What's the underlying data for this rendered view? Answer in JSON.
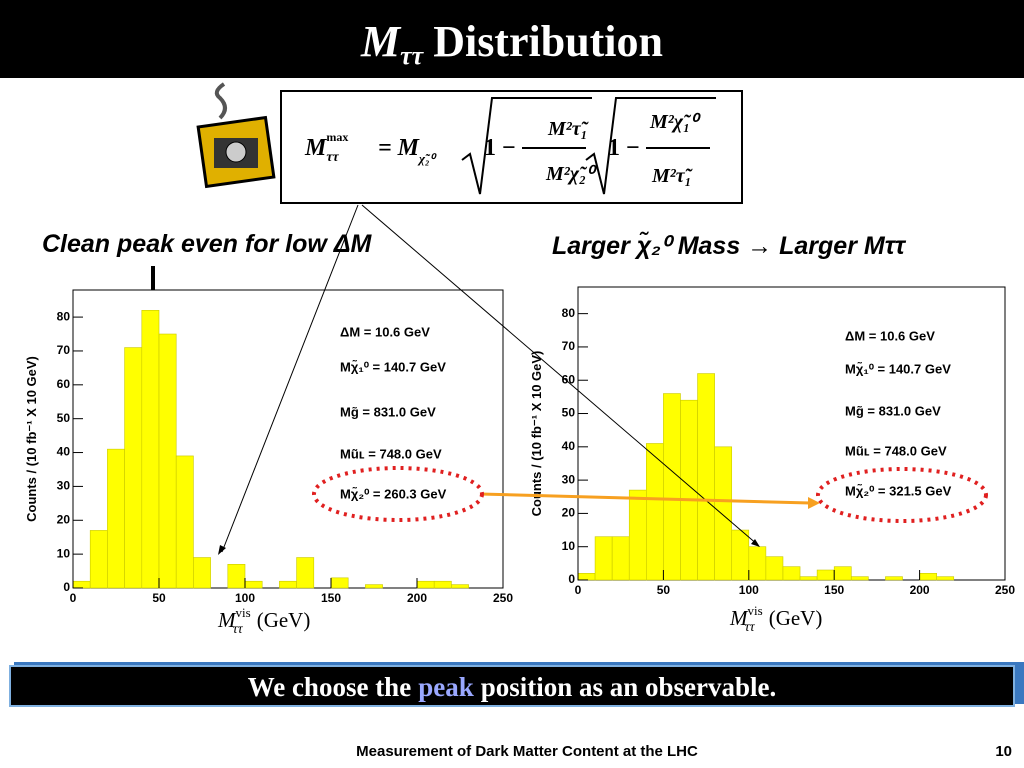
{
  "slide": {
    "title_symbol": "M",
    "title_sub": "ττ",
    "title_text": "Distribution",
    "formula": {
      "lhs": "M",
      "lhs_sup": "max",
      "lhs_sub": "ττ",
      "eq": "= M",
      "eq_sub": "χ̃₂⁰",
      "one": "1 −",
      "f1_num": "M²τ̃₁",
      "f1_den": "M²χ̃₂⁰",
      "f2_num": "M²χ̃₁⁰",
      "f2_den": "M²τ̃₁"
    },
    "caption_left": "Clean peak even for low ΔM",
    "caption_right": "Larger χ̃₂⁰ Mass → Larger Mττ",
    "banner_pre": "We choose the",
    "banner_hl": "peak",
    "banner_post": "position as an observable.",
    "footer": "Measurement of Dark Matter Content at the LHC",
    "page": "10"
  },
  "chart_data": [
    {
      "type": "histogram",
      "y_label": "Counts / (10 fb⁻¹ X 10 GeV)",
      "x_label": {
        "symbol": "M",
        "sub": "ττ",
        "sup": "vis",
        "unit": "(GeV)"
      },
      "bins": [
        0,
        10,
        20,
        30,
        40,
        50,
        60,
        70,
        80,
        90,
        100,
        110,
        120,
        130,
        140,
        150,
        160,
        170,
        180,
        190,
        200,
        210,
        220,
        230,
        240,
        250
      ],
      "values": [
        2,
        17,
        41,
        71,
        82,
        75,
        39,
        9,
        0,
        7,
        2,
        0,
        2,
        9,
        0,
        3,
        0,
        1,
        0,
        0,
        2,
        2,
        1,
        0,
        0
      ],
      "color": "#ffff00",
      "xlim": [
        0,
        250
      ],
      "xticks": [
        0,
        50,
        100,
        150,
        200,
        250
      ],
      "ylim": [
        0,
        88
      ],
      "yticks": [
        0,
        10,
        20,
        30,
        40,
        50,
        60,
        70,
        80
      ],
      "annotations": [
        "ΔM = 10.6 GeV",
        "Mχ̃₁⁰ = 140.7 GeV",
        "Mg̃ = 831.0 GeV",
        "Mũʟ = 748.0 GeV",
        "Mχ̃₂⁰ = 260.3 GeV"
      ]
    },
    {
      "type": "histogram",
      "y_label": "Counts / (10 fb⁻¹ X 10 GeV)",
      "x_label": {
        "symbol": "M",
        "sub": "ττ",
        "sup": "vis",
        "unit": "(GeV)"
      },
      "bins": [
        0,
        10,
        20,
        30,
        40,
        50,
        60,
        70,
        80,
        90,
        100,
        110,
        120,
        130,
        140,
        150,
        160,
        170,
        180,
        190,
        200,
        210,
        220,
        230,
        240,
        250
      ],
      "values": [
        2,
        13,
        13,
        27,
        41,
        56,
        54,
        62,
        40,
        15,
        10,
        7,
        4,
        1,
        3,
        4,
        1,
        0,
        1,
        0,
        2,
        1,
        0,
        0,
        0
      ],
      "color": "#ffff00",
      "xlim": [
        0,
        250
      ],
      "xticks": [
        0,
        50,
        100,
        150,
        200,
        250
      ],
      "ylim": [
        0,
        88
      ],
      "yticks": [
        0,
        10,
        20,
        30,
        40,
        50,
        60,
        70,
        80
      ],
      "annotations": [
        "ΔM = 10.6 GeV",
        "Mχ̃₁⁰ = 140.7 GeV",
        "Mg̃ = 831.0 GeV",
        "Mũʟ = 748.0 GeV",
        "Mχ̃₂⁰ = 321.5 GeV"
      ]
    }
  ]
}
